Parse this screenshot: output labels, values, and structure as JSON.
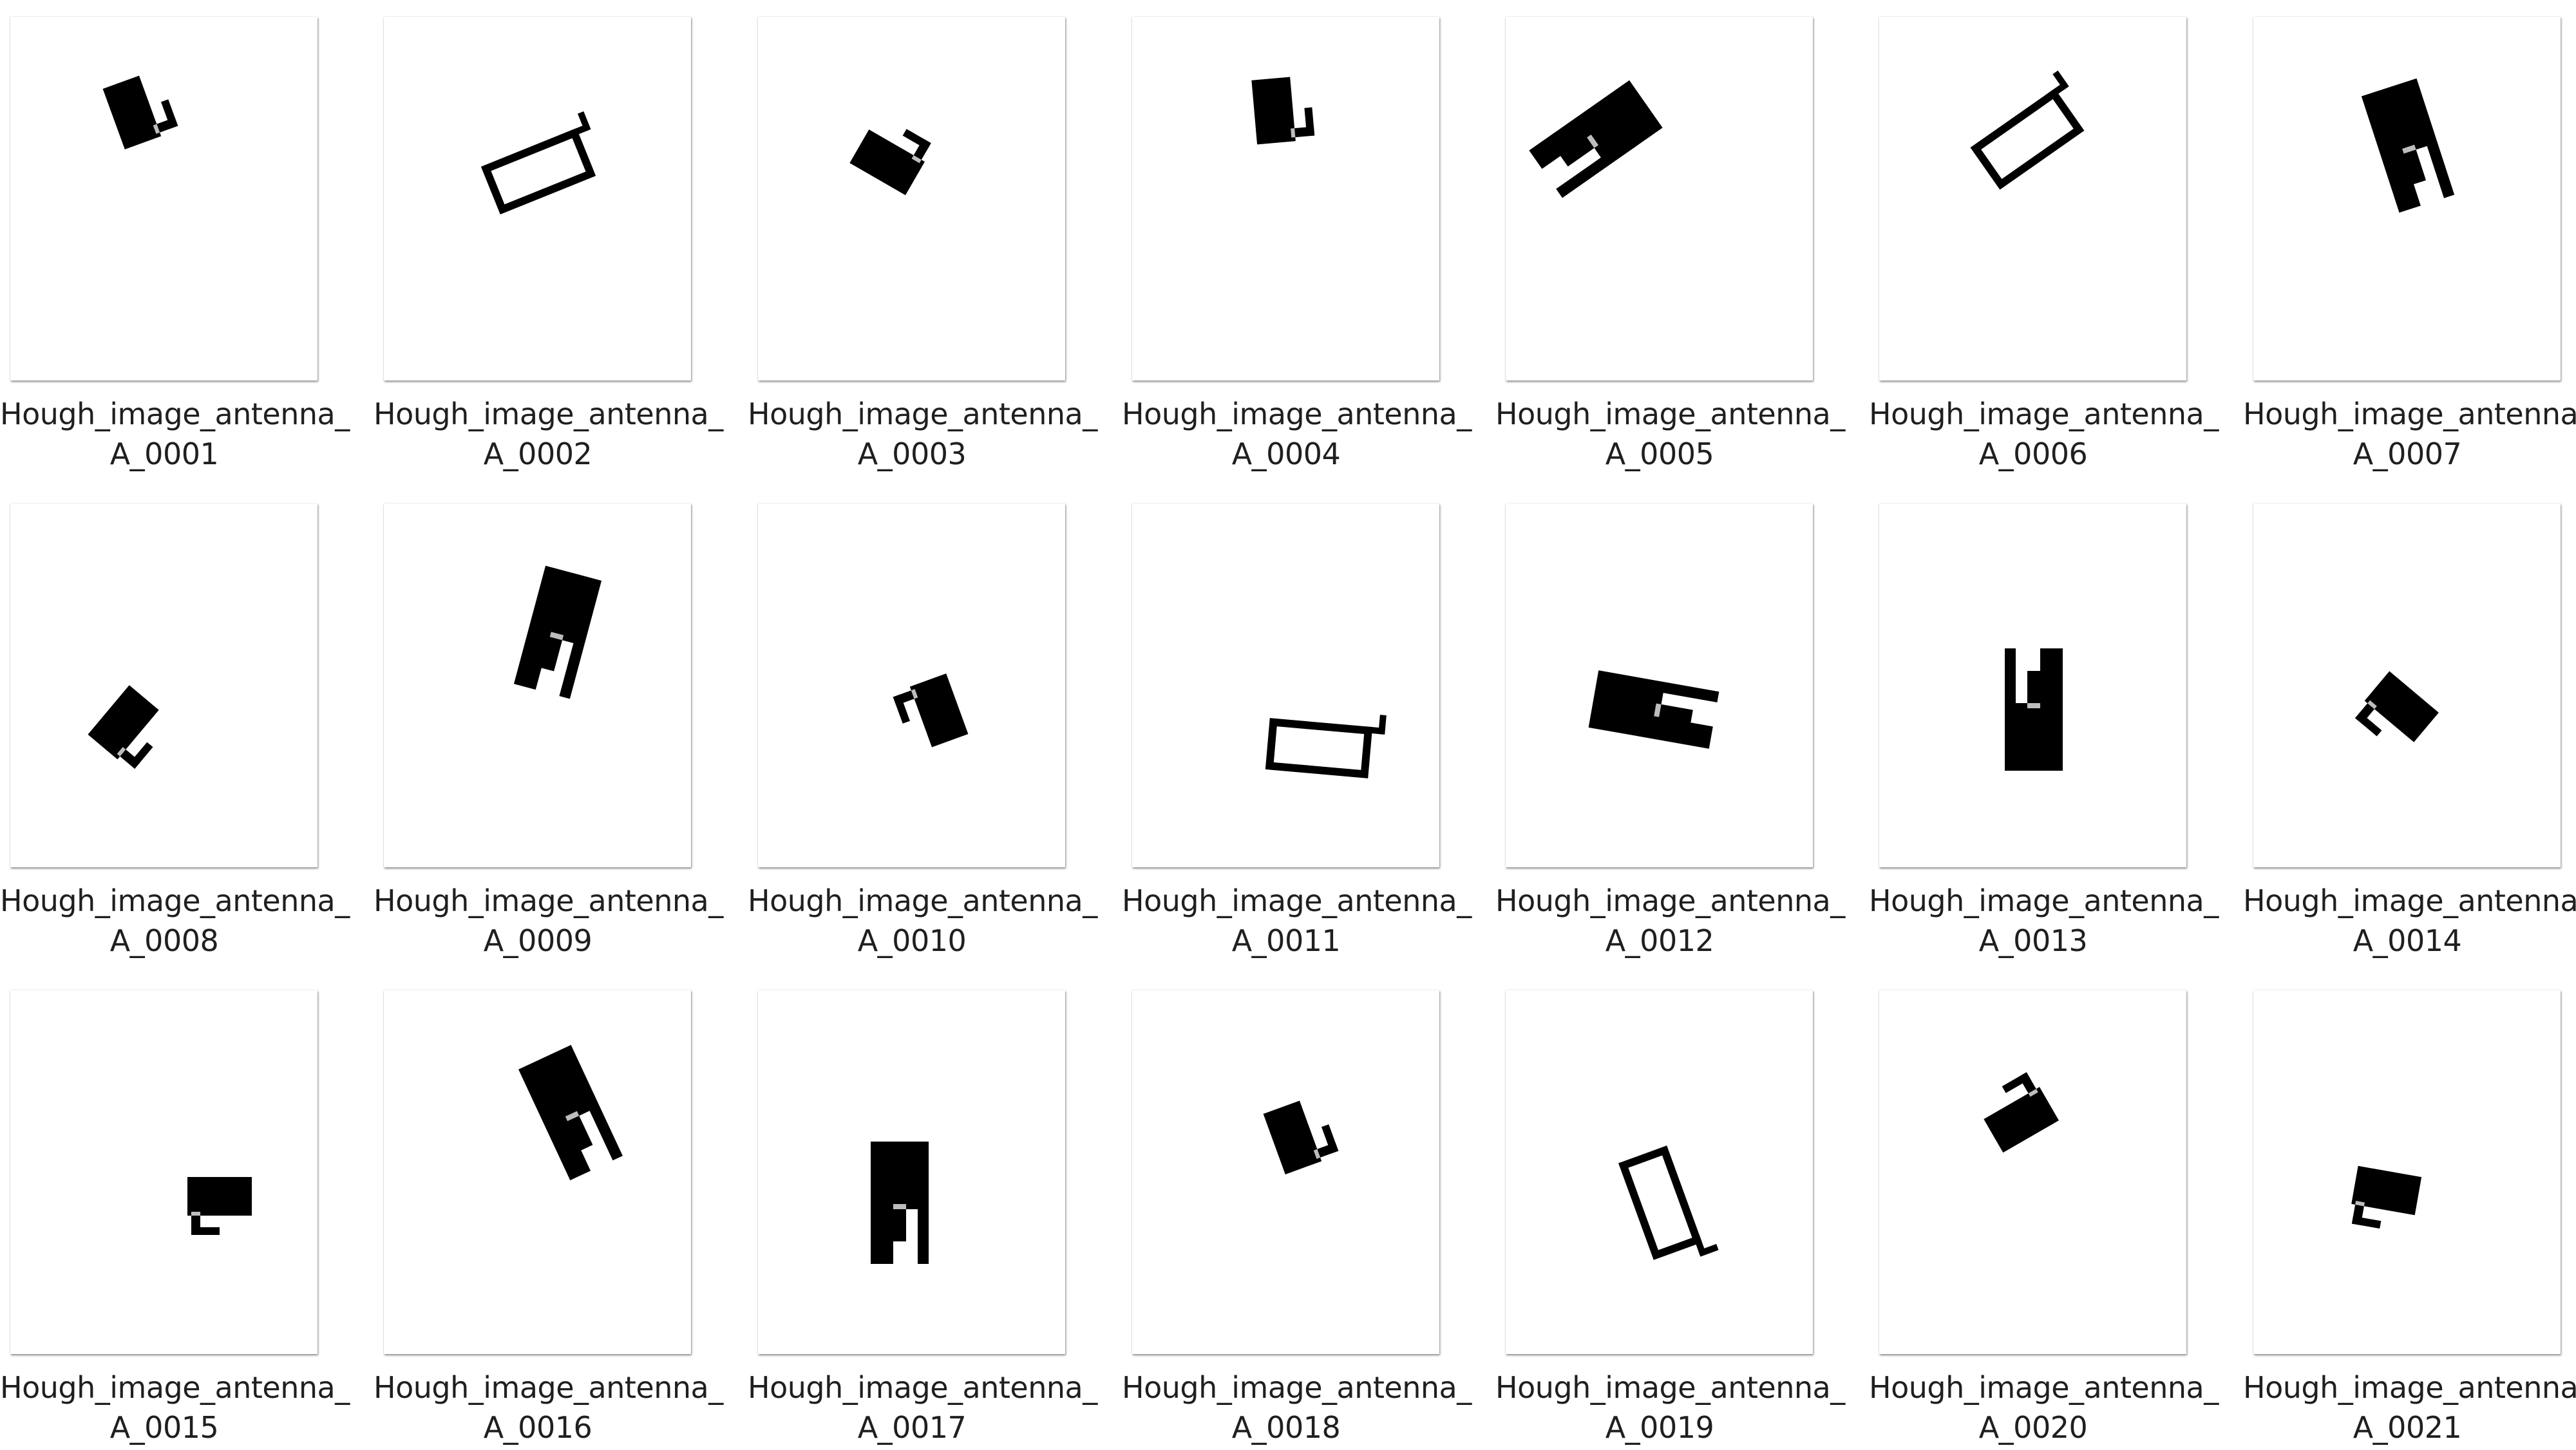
{
  "files": [
    {
      "line1": "Hough_image_antenna_",
      "line2": "A_0001",
      "icon": "antenna-layout-thumbnail-icon",
      "variant": "solid-l",
      "angle": -20
    },
    {
      "line1": "Hough_image_antenna_",
      "line2": "A_0002",
      "icon": "antenna-layout-thumbnail-icon",
      "variant": "outline-loop",
      "angle": -22
    },
    {
      "line1": "Hough_image_antenna_",
      "line2": "A_0003",
      "icon": "antenna-layout-thumbnail-icon",
      "variant": "solid-l",
      "angle": -60
    },
    {
      "line1": "Hough_image_antenna_",
      "line2": "A_0004",
      "icon": "antenna-layout-thumbnail-icon",
      "variant": "solid-l",
      "angle": -5
    },
    {
      "line1": "Hough_image_antenna_",
      "line2": "A_0005",
      "icon": "antenna-layout-thumbnail-icon",
      "variant": "solid-slot",
      "angle": 55
    },
    {
      "line1": "Hough_image_antenna_",
      "line2": "A_0006",
      "icon": "antenna-layout-thumbnail-icon",
      "variant": "outline-loop",
      "angle": -35
    },
    {
      "line1": "Hough_image_antenna_",
      "line2": "A_0007",
      "icon": "antenna-layout-thumbnail-icon",
      "variant": "solid-slot",
      "angle": -18
    },
    {
      "line1": "Hough_image_antenna_",
      "line2": "A_0008",
      "icon": "antenna-layout-thumbnail-icon",
      "variant": "solid-l",
      "angle": 40
    },
    {
      "line1": "Hough_image_antenna_",
      "line2": "A_0009",
      "icon": "antenna-layout-thumbnail-icon",
      "variant": "solid-slot",
      "angle": 15
    },
    {
      "line1": "Hough_image_antenna_",
      "line2": "A_0010",
      "icon": "antenna-layout-thumbnail-icon",
      "variant": "solid-l",
      "angle": 160
    },
    {
      "line1": "Hough_image_antenna_",
      "line2": "A_0011",
      "icon": "antenna-layout-thumbnail-icon",
      "variant": "outline-loop",
      "angle": 5
    },
    {
      "line1": "Hough_image_antenna_",
      "line2": "A_0012",
      "icon": "antenna-layout-thumbnail-icon",
      "variant": "solid-slot",
      "angle": -80
    },
    {
      "line1": "Hough_image_antenna_",
      "line2": "A_0013",
      "icon": "antenna-layout-thumbnail-icon",
      "variant": "solid-slot",
      "angle": 180
    },
    {
      "line1": "Hough_image_antenna_",
      "line2": "A_0014",
      "icon": "antenna-layout-thumbnail-icon",
      "variant": "solid-l",
      "angle": 130
    },
    {
      "line1": "Hough_image_antenna_",
      "line2": "A_0015",
      "icon": "antenna-layout-thumbnail-icon",
      "variant": "solid-l",
      "angle": 90
    },
    {
      "line1": "Hough_image_antenna_",
      "line2": "A_0016",
      "icon": "antenna-layout-thumbnail-icon",
      "variant": "solid-slot",
      "angle": -25
    },
    {
      "line1": "Hough_image_antenna_",
      "line2": "A_0017",
      "icon": "antenna-layout-thumbnail-icon",
      "variant": "solid-slot",
      "angle": 0
    },
    {
      "line1": "Hough_image_antenna_",
      "line2": "A_0018",
      "icon": "antenna-layout-thumbnail-icon",
      "variant": "solid-l",
      "angle": -20
    },
    {
      "line1": "Hough_image_antenna_",
      "line2": "A_0019",
      "icon": "antenna-layout-thumbnail-icon",
      "variant": "outline-loop",
      "angle": 70
    },
    {
      "line1": "Hough_image_antenna_",
      "line2": "A_0020",
      "icon": "antenna-layout-thumbnail-icon",
      "variant": "solid-l",
      "angle": -120
    },
    {
      "line1": "Hough_image_antenna_",
      "line2": "A_0021",
      "icon": "antenna-layout-thumbnail-icon",
      "variant": "solid-l",
      "angle": 100
    }
  ],
  "colors": {
    "caption_text": "#1f1f1f",
    "thumbnail_background": "#ffffff",
    "antenna_fill": "#000000",
    "feed_gap": "#bdbdbd"
  }
}
